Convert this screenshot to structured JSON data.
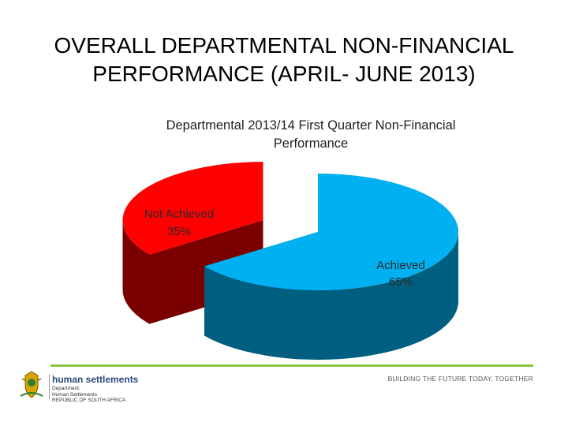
{
  "slide": {
    "title_line1": "OVERALL  DEPARTMENTAL NON-FINANCIAL",
    "title_line2": "PERFORMANCE (APRIL- JUNE 2013)"
  },
  "chart_data": {
    "type": "pie",
    "title_lines": [
      "Departmental 2013/14 First Quarter Non-Financial",
      "Performance"
    ],
    "slices": [
      {
        "label": "Achieved",
        "value": 65,
        "value_label": "65%",
        "color": "#00b0f0",
        "side_color": "#005f80"
      },
      {
        "label": "Not Achieved",
        "value": 35,
        "value_label": "35%",
        "color": "#ff0000",
        "side_color": "#7a0000"
      }
    ],
    "exploded": "Not Achieved",
    "style": "3d"
  },
  "footer": {
    "brand": "human settlements",
    "sub_lines": [
      "Department:",
      "Human Settlements",
      "REPUBLIC OF SOUTH AFRICA"
    ],
    "tagline": "BUILDING THE FUTURE TODAY, TOGETHER",
    "accent": "#8bc53f"
  }
}
